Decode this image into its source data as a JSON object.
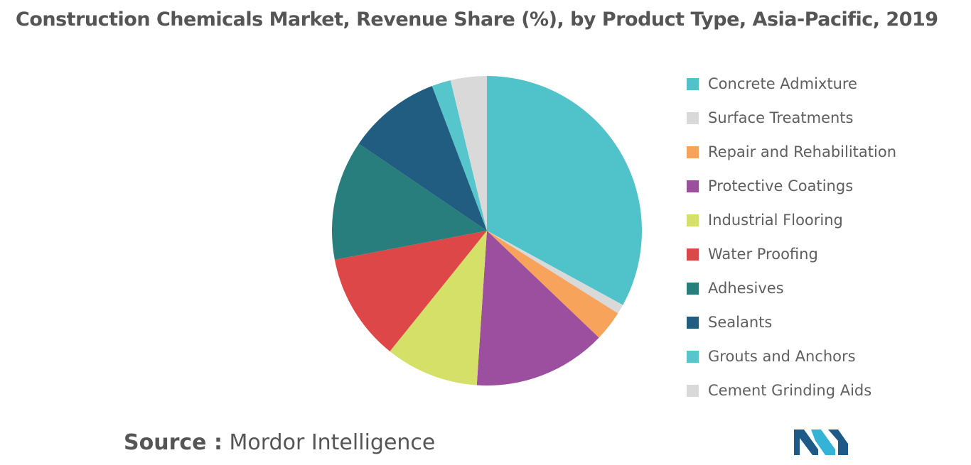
{
  "chart_data": {
    "type": "pie",
    "title": "Construction Chemicals Market, Revenue Share (%), by Product Type, Asia-Pacific, 2019",
    "legend_position": "right",
    "categories": [
      "Concrete Admixture",
      "Surface Treatments",
      "Repair and Rehabilitation",
      "Protective Coatings",
      "Industrial Flooring",
      "Water Proofing",
      "Adhesives",
      "Sealants",
      "Grouts and Anchors",
      "Cement Grinding Aids"
    ],
    "values": [
      33.2,
      1.0,
      3.2,
      14.0,
      9.8,
      11.3,
      12.6,
      9.8,
      2.0,
      3.8
    ],
    "colors": [
      "#4fc3c9",
      "#d9d9d9",
      "#f7a35c",
      "#9b4f9e",
      "#d4e067",
      "#dd4747",
      "#287e7c",
      "#215d80",
      "#56c6cc",
      "#d9d9d9"
    ]
  },
  "source": {
    "label": "Source :",
    "value": "Mordor Intelligence"
  },
  "logo": {
    "name": "mordor-intelligence-logo",
    "colors": [
      "#1e5a88",
      "#35b3d6"
    ]
  }
}
